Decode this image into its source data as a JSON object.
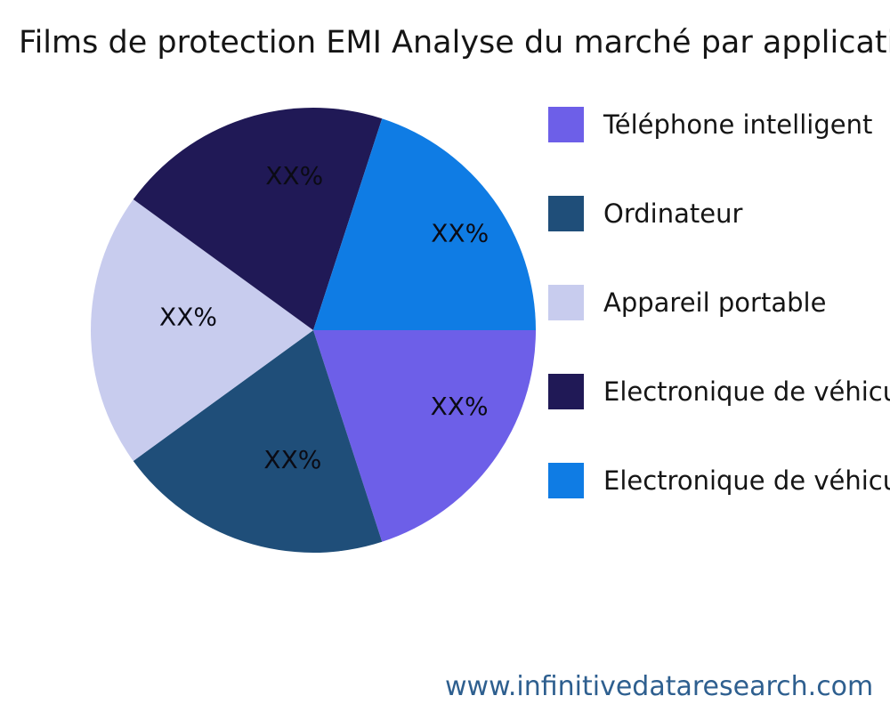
{
  "footer": {
    "url": "www.infinitivedataresearch.com",
    "color": "#2e5f8f"
  },
  "chart_data": {
    "type": "pie",
    "title": "Films de protection EMI Analyse du marché par application",
    "categories": [
      "Téléphone intelligent",
      "Ordinateur",
      "Appareil portable",
      "Electronique de véhicule",
      "Electronique de véhicule"
    ],
    "values": [
      20,
      20,
      20,
      20,
      20
    ],
    "slice_labels": [
      "XX%",
      "XX%",
      "XX%",
      "XX%",
      "XX%"
    ],
    "colors": [
      "#6d5fe8",
      "#1f4e79",
      "#c8ccee",
      "#201956",
      "#0f7ce4"
    ],
    "start_angle_deg": 0,
    "direction": "clockwise",
    "legend_position": "right",
    "slice_label_color": "#0b0b14",
    "label_layout": [
      {
        "angle_deg": -27.5,
        "dist_frac": 0.74
      },
      {
        "angle_deg": -99,
        "dist_frac": 0.59
      },
      {
        "angle_deg": 174,
        "dist_frac": 0.565
      },
      {
        "angle_deg": 97,
        "dist_frac": 0.7
      },
      {
        "angle_deg": 33.5,
        "dist_frac": 0.79
      }
    ]
  }
}
